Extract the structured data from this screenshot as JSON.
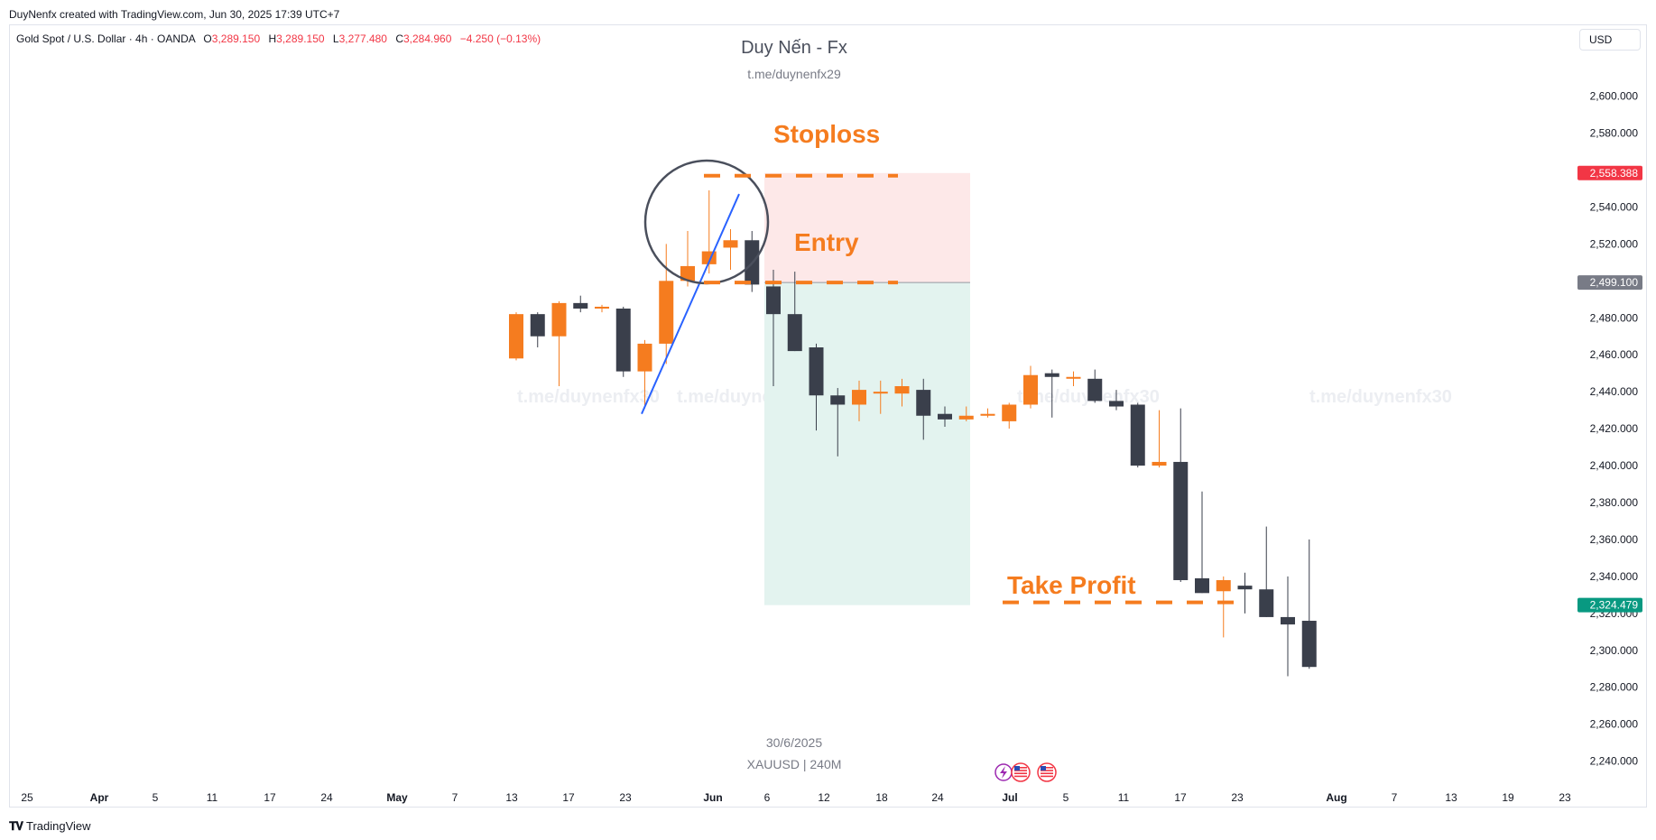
{
  "credit": "DuyNenfx created with TradingView.com, Jun 30, 2025 17:39 UTC+7",
  "legend": {
    "symbol": "Gold Spot / U.S. Dollar · 4h · OANDA",
    "o_label": "O",
    "o_value": "3,289.150",
    "h_label": "H",
    "h_value": "3,289.150",
    "l_label": "L",
    "l_value": "3,277.480",
    "c_label": "C",
    "c_value": "3,284.960",
    "change": "−4.250 (−0.13%)"
  },
  "title": "Duy Nến - Fx",
  "subtitle": "t.me/duynenfx29",
  "currency_button": "USD",
  "footnote_date": "30/6/2025",
  "footnote_symbol": "XAUUSD | 240M",
  "branding": "TradingView",
  "colors": {
    "bull": "#f57c1f",
    "bear": "#3a3f4b",
    "stop_zone": "#fde8e8",
    "target_zone": "#e3f3ef",
    "annotation": "#f57c1f",
    "trendline": "#2962ff",
    "stop_badge": "#f23645",
    "entry_badge": "#787b86",
    "target_badge": "#089981"
  },
  "icons": [
    "lightning-event-icon",
    "us-flag-icon",
    "us-flag-icon"
  ],
  "chart_data": {
    "type": "candlestick",
    "title": "Duy Nến - Fx",
    "ylim": [
      2232,
      2612
    ],
    "grid": false,
    "y_ticks": [
      "2,600.000",
      "2,580.000",
      "2,560.000",
      "2,540.000",
      "2,520.000",
      "2,500.000",
      "2,480.000",
      "2,460.000",
      "2,440.000",
      "2,420.000",
      "2,400.000",
      "2,380.000",
      "2,360.000",
      "2,340.000",
      "2,320.000",
      "2,300.000",
      "2,280.000",
      "2,260.000",
      "2,240.000"
    ],
    "x_ticks": [
      "25",
      "Apr",
      "5",
      "11",
      "17",
      "24",
      "May",
      "7",
      "13",
      "17",
      "23",
      "Jun",
      "6",
      "12",
      "18",
      "24",
      "Jul",
      "5",
      "11",
      "17",
      "23",
      "Aug",
      "7",
      "13",
      "19",
      "23"
    ],
    "candles": [
      {
        "o": 2458,
        "h": 2483,
        "l": 2457,
        "c": 2482
      },
      {
        "o": 2482,
        "h": 2483,
        "l": 2464,
        "c": 2470
      },
      {
        "o": 2470,
        "h": 2489,
        "l": 2443,
        "c": 2488
      },
      {
        "o": 2488,
        "h": 2492,
        "l": 2483,
        "c": 2485
      },
      {
        "o": 2485,
        "h": 2487,
        "l": 2483,
        "c": 2486
      },
      {
        "o": 2485,
        "h": 2486,
        "l": 2448,
        "c": 2451
      },
      {
        "o": 2451,
        "h": 2468,
        "l": 2431,
        "c": 2466
      },
      {
        "o": 2466,
        "h": 2520,
        "l": 2455,
        "c": 2500
      },
      {
        "o": 2500,
        "h": 2527,
        "l": 2497,
        "c": 2508
      },
      {
        "o": 2509,
        "h": 2549,
        "l": 2504,
        "c": 2516
      },
      {
        "o": 2518,
        "h": 2528,
        "l": 2506,
        "c": 2522
      },
      {
        "o": 2522,
        "h": 2527,
        "l": 2494,
        "c": 2498
      },
      {
        "o": 2497,
        "h": 2506,
        "l": 2443,
        "c": 2482
      },
      {
        "o": 2482,
        "h": 2505,
        "l": 2462,
        "c": 2462
      },
      {
        "o": 2464,
        "h": 2466,
        "l": 2419,
        "c": 2438
      },
      {
        "o": 2438,
        "h": 2442,
        "l": 2405,
        "c": 2433
      },
      {
        "o": 2433,
        "h": 2446,
        "l": 2424,
        "c": 2441
      },
      {
        "o": 2439,
        "h": 2446,
        "l": 2428,
        "c": 2440
      },
      {
        "o": 2439,
        "h": 2447,
        "l": 2432,
        "c": 2443
      },
      {
        "o": 2441,
        "h": 2447,
        "l": 2414,
        "c": 2427
      },
      {
        "o": 2428,
        "h": 2432,
        "l": 2421,
        "c": 2425
      },
      {
        "o": 2425,
        "h": 2432,
        "l": 2424,
        "c": 2427
      },
      {
        "o": 2427,
        "h": 2431,
        "l": 2426,
        "c": 2428
      },
      {
        "o": 2424,
        "h": 2434,
        "l": 2420,
        "c": 2433
      },
      {
        "o": 2433,
        "h": 2454,
        "l": 2431,
        "c": 2449
      },
      {
        "o": 2450,
        "h": 2452,
        "l": 2426,
        "c": 2448
      },
      {
        "o": 2448,
        "h": 2451,
        "l": 2443,
        "c": 2448
      },
      {
        "o": 2447,
        "h": 2452,
        "l": 2434,
        "c": 2435
      },
      {
        "o": 2435,
        "h": 2441,
        "l": 2430,
        "c": 2432
      },
      {
        "o": 2433,
        "h": 2434,
        "l": 2399,
        "c": 2400
      },
      {
        "o": 2400,
        "h": 2430,
        "l": 2399,
        "c": 2402
      },
      {
        "o": 2402,
        "h": 2431,
        "l": 2337,
        "c": 2338
      },
      {
        "o": 2339,
        "h": 2386,
        "l": 2331,
        "c": 2331
      },
      {
        "o": 2332,
        "h": 2340,
        "l": 2307,
        "c": 2338
      },
      {
        "o": 2335,
        "h": 2342,
        "l": 2320,
        "c": 2333
      },
      {
        "o": 2333,
        "h": 2367,
        "l": 2318,
        "c": 2318
      },
      {
        "o": 2318,
        "h": 2340,
        "l": 2286,
        "c": 2314
      },
      {
        "o": 2316,
        "h": 2360,
        "l": 2290,
        "c": 2291
      }
    ],
    "trade": {
      "stop_loss": 2558.388,
      "entry": 2499.1,
      "take_profit": 2324.479,
      "stop_label": "2,558.388",
      "entry_label": "2,499.100",
      "target_label": "2,324.479"
    },
    "annotations": [
      "Stoploss",
      "Entry",
      "Take Profit"
    ],
    "watermarks": [
      "t.me/duynenfx30",
      "t.me/duynenfx30",
      "t.me/duynenfx30",
      "t.me/duynenfx30"
    ]
  }
}
